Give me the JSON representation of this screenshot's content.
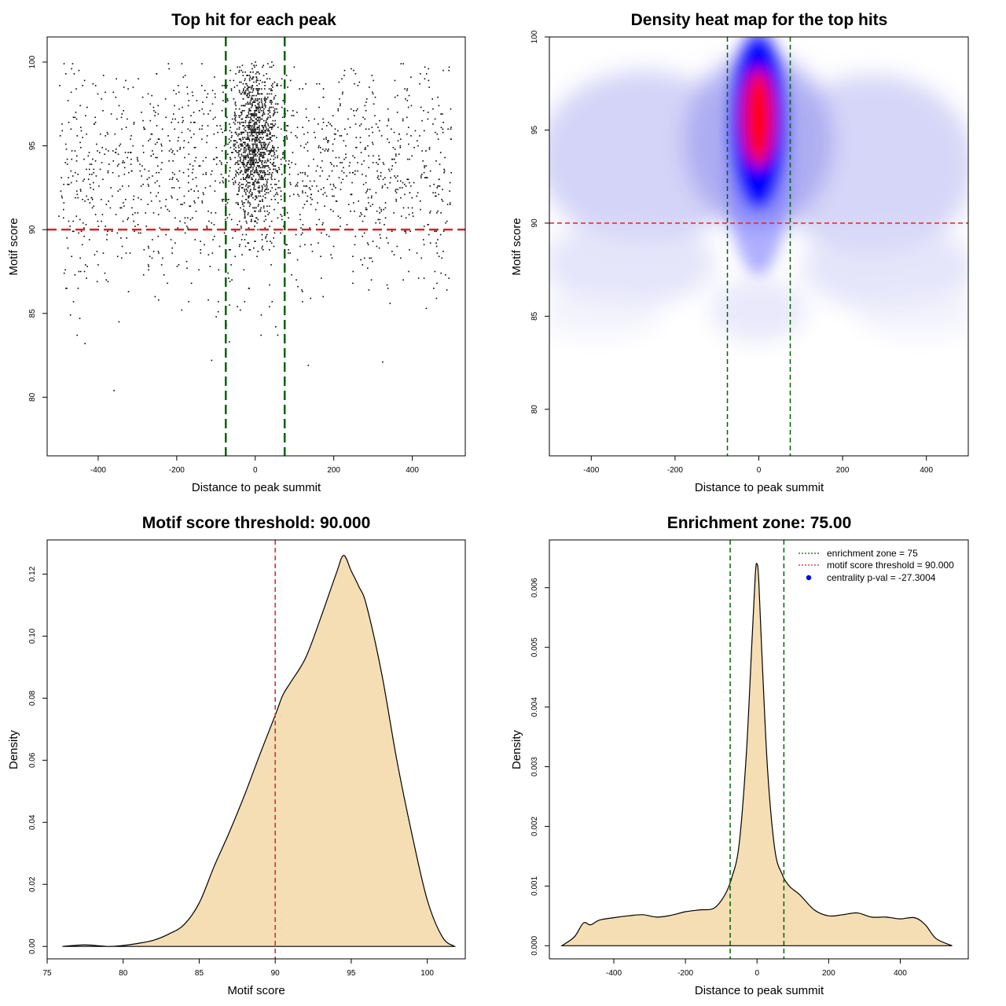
{
  "colors": {
    "threshold_line": "#dd2222",
    "zone_line": "#006400",
    "density_fill": "#f5deb3",
    "heat_low": "#ffffff",
    "heat_mid": "#0000ff",
    "heat_high": "#ff0000",
    "points": "#000000",
    "pval_point": "#0000ff"
  },
  "chart_data": [
    {
      "id": "scatter",
      "type": "scatter",
      "title": "Top hit for each peak",
      "xlabel": "Distance to peak summit",
      "ylabel": "Motif score",
      "xlim": [
        -530,
        535
      ],
      "ylim": [
        76.5,
        101.5
      ],
      "xticks": [
        -400,
        -200,
        0,
        200,
        400
      ],
      "yticks": [
        80,
        85,
        90,
        95,
        100
      ],
      "vlines": [
        -75,
        75
      ],
      "hline": 90,
      "n_points": 2600
    },
    {
      "id": "heatmap",
      "type": "heatmap",
      "title": "Density heat map for the top hits",
      "xlabel": "Distance to peak summit",
      "ylabel": "Motif score",
      "xlim": [
        -500,
        500
      ],
      "ylim": [
        77.5,
        100
      ],
      "xticks": [
        -400,
        -200,
        0,
        200,
        400
      ],
      "yticks": [
        80,
        85,
        90,
        95,
        100
      ],
      "vlines": [
        -75,
        75
      ],
      "hline": 90,
      "hotspot": {
        "x": 0,
        "y": 95.5
      }
    },
    {
      "id": "score_density",
      "type": "area",
      "title": "Motif score threshold: 90.000",
      "xlabel": "Motif score",
      "ylabel": "Density",
      "xlim": [
        75,
        102.5
      ],
      "ylim": [
        -0.004,
        0.131
      ],
      "xticks": [
        75,
        80,
        85,
        90,
        95,
        100
      ],
      "yticks": [
        0.0,
        0.02,
        0.04,
        0.06,
        0.08,
        0.1,
        0.12
      ],
      "ytick_labels": [
        "0.00",
        "0.02",
        "0.04",
        "0.06",
        "0.08",
        "0.10",
        "0.12"
      ],
      "vline": 90,
      "curve_x": [
        76,
        77.5,
        79,
        80,
        81,
        82,
        83,
        84,
        85,
        86,
        87,
        88,
        89,
        90,
        90.5,
        91,
        92,
        93,
        94,
        94.5,
        95,
        95.5,
        96,
        97,
        98,
        99,
        100,
        101,
        101.8
      ],
      "curve_y": [
        0.0,
        0.0005,
        0.0,
        0.0003,
        0.001,
        0.002,
        0.004,
        0.007,
        0.014,
        0.026,
        0.037,
        0.049,
        0.062,
        0.0745,
        0.081,
        0.085,
        0.093,
        0.106,
        0.12,
        0.126,
        0.121,
        0.116,
        0.11,
        0.088,
        0.06,
        0.036,
        0.015,
        0.003,
        0.0
      ]
    },
    {
      "id": "distance_density",
      "type": "area",
      "title": "Enrichment zone: 75.00",
      "xlabel": "Distance to peak summit",
      "ylabel": "Density",
      "xlim": [
        -580,
        590
      ],
      "ylim": [
        -0.00022,
        0.0068
      ],
      "xticks": [
        -400,
        -200,
        0,
        200,
        400
      ],
      "yticks": [
        0.0,
        0.001,
        0.002,
        0.003,
        0.004,
        0.005,
        0.006
      ],
      "ytick_labels": [
        "0.000",
        "0.001",
        "0.002",
        "0.003",
        "0.004",
        "0.005",
        "0.006"
      ],
      "vlines": [
        -75,
        75
      ],
      "curve_x": [
        -545,
        -510,
        -485,
        -465,
        -440,
        -400,
        -360,
        -320,
        -280,
        -240,
        -200,
        -160,
        -120,
        -90,
        -70,
        -50,
        -30,
        -15,
        -5,
        0,
        5,
        15,
        30,
        50,
        70,
        90,
        120,
        160,
        200,
        240,
        280,
        320,
        360,
        400,
        440,
        470,
        500,
        545
      ],
      "curve_y": [
        0.0,
        0.00015,
        0.00038,
        0.00035,
        0.00043,
        0.00047,
        0.0005,
        0.00052,
        0.00048,
        0.00051,
        0.00057,
        0.0006,
        0.00063,
        0.00085,
        0.00115,
        0.0017,
        0.0032,
        0.005,
        0.0062,
        0.0064,
        0.0061,
        0.0047,
        0.0029,
        0.0016,
        0.0012,
        0.001,
        0.00085,
        0.0006,
        0.0005,
        0.00052,
        0.00055,
        0.00048,
        0.00048,
        0.00045,
        0.00047,
        0.00035,
        0.00012,
        0.0
      ],
      "legend": [
        {
          "label": "enrichment zone = 75",
          "style": "dotted-green"
        },
        {
          "label": "motif score threshold = 90.000",
          "style": "dotted-red"
        },
        {
          "label": "centrality p-val = -27.3004",
          "style": "blue-point"
        }
      ]
    }
  ]
}
